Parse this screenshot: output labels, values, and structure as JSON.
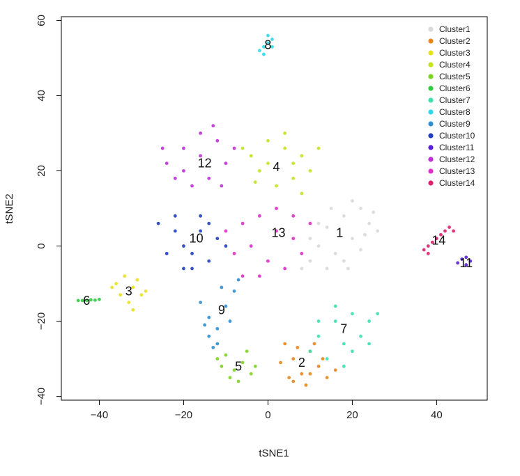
{
  "chart_data": {
    "type": "scatter",
    "title": "",
    "xlabel": "tSNE1",
    "ylabel": "tSNE2",
    "xlim": [
      -49,
      52
    ],
    "ylim": [
      -41,
      61
    ],
    "xticks": [
      -40,
      -20,
      0,
      20,
      40
    ],
    "yticks": [
      -40,
      -20,
      0,
      20,
      40,
      60
    ],
    "xtick_labels": [
      "−40",
      "−20",
      "0",
      "20",
      "40"
    ],
    "ytick_labels": [
      "−40",
      "−20",
      "0",
      "20",
      "40",
      "60"
    ],
    "legend_position": "top-right",
    "series": [
      {
        "name": "Cluster1",
        "color": "#d9d9d9",
        "label": "1",
        "label_pos": [
          17,
          3.5
        ],
        "points": [
          [
            14,
            5
          ],
          [
            18,
            8
          ],
          [
            22,
            10
          ],
          [
            20,
            2
          ],
          [
            16,
            -2
          ],
          [
            12,
            0
          ],
          [
            10,
            -4
          ],
          [
            14,
            -6
          ],
          [
            24,
            6
          ],
          [
            26,
            4
          ],
          [
            22,
            -1
          ],
          [
            18,
            -4
          ],
          [
            8,
            -6
          ],
          [
            12,
            6
          ],
          [
            20,
            12
          ],
          [
            15,
            10
          ],
          [
            25,
            9
          ],
          [
            10,
            2
          ],
          [
            19,
            -6
          ],
          [
            23,
            3
          ]
        ]
      },
      {
        "name": "Cluster2",
        "color": "#e8871e",
        "label": "2",
        "label_pos": [
          8,
          -31
        ],
        "points": [
          [
            4,
            -26
          ],
          [
            6,
            -30
          ],
          [
            8,
            -34
          ],
          [
            10,
            -28
          ],
          [
            12,
            -32
          ],
          [
            14,
            -35
          ],
          [
            9,
            -37
          ],
          [
            5,
            -35
          ],
          [
            3,
            -31
          ],
          [
            11,
            -26
          ],
          [
            13,
            -30
          ],
          [
            7,
            -27
          ],
          [
            16,
            -33
          ],
          [
            6,
            -36
          ],
          [
            10,
            -34
          ]
        ]
      },
      {
        "name": "Cluster3",
        "color": "#e8e21e",
        "label": "3",
        "label_pos": [
          -33,
          -12
        ],
        "points": [
          [
            -36,
            -10
          ],
          [
            -34,
            -8
          ],
          [
            -32,
            -11
          ],
          [
            -30,
            -13
          ],
          [
            -33,
            -15
          ],
          [
            -31,
            -9
          ],
          [
            -35,
            -13
          ],
          [
            -29,
            -12
          ],
          [
            -32,
            -17
          ],
          [
            -37,
            -11
          ]
        ]
      },
      {
        "name": "Cluster4",
        "color": "#c5e21e",
        "label": "4",
        "label_pos": [
          2,
          21
        ],
        "points": [
          [
            -4,
            24
          ],
          [
            0,
            28
          ],
          [
            4,
            26
          ],
          [
            8,
            24
          ],
          [
            10,
            20
          ],
          [
            6,
            18
          ],
          [
            2,
            16
          ],
          [
            -2,
            20
          ],
          [
            -6,
            26
          ],
          [
            4,
            30
          ],
          [
            12,
            26
          ],
          [
            8,
            14
          ],
          [
            0,
            22
          ],
          [
            6,
            22
          ],
          [
            -3,
            17
          ]
        ]
      },
      {
        "name": "Cluster5",
        "color": "#7ed321",
        "label": "5",
        "label_pos": [
          -7,
          -32
        ],
        "points": [
          [
            -10,
            -29
          ],
          [
            -8,
            -33
          ],
          [
            -6,
            -31
          ],
          [
            -4,
            -34
          ],
          [
            -9,
            -35
          ],
          [
            -11,
            -32
          ],
          [
            -5,
            -28
          ],
          [
            -3,
            -32
          ],
          [
            -7,
            -36
          ],
          [
            -12,
            -30
          ]
        ]
      },
      {
        "name": "Cluster6",
        "color": "#2ecc40",
        "label": "6",
        "label_pos": [
          -43,
          -14.5
        ],
        "points": [
          [
            -45,
            -14.5
          ],
          [
            -44,
            -14.5
          ],
          [
            -43,
            -14.5
          ],
          [
            -42,
            -14.3
          ],
          [
            -41,
            -14.4
          ],
          [
            -40,
            -14.2
          ]
        ]
      },
      {
        "name": "Cluster7",
        "color": "#3ee0b0",
        "label": "7",
        "label_pos": [
          18,
          -22
        ],
        "points": [
          [
            12,
            -24
          ],
          [
            16,
            -20
          ],
          [
            20,
            -18
          ],
          [
            24,
            -20
          ],
          [
            18,
            -26
          ],
          [
            14,
            -30
          ],
          [
            22,
            -24
          ],
          [
            26,
            -18
          ],
          [
            16,
            -16
          ],
          [
            20,
            -28
          ],
          [
            10,
            -28
          ],
          [
            24,
            -26
          ],
          [
            12,
            -20
          ],
          [
            18,
            -32
          ]
        ]
      },
      {
        "name": "Cluster8",
        "color": "#2ed8e8",
        "label": "8",
        "label_pos": [
          0,
          53.5
        ],
        "points": [
          [
            -2,
            52
          ],
          [
            -1,
            53
          ],
          [
            0,
            54
          ],
          [
            1,
            55
          ],
          [
            0,
            56
          ],
          [
            -1,
            51
          ],
          [
            1,
            53
          ]
        ]
      },
      {
        "name": "Cluster9",
        "color": "#2f8fd0",
        "label": "9",
        "label_pos": [
          -11,
          -17
        ],
        "points": [
          [
            -16,
            -15
          ],
          [
            -14,
            -19
          ],
          [
            -12,
            -22
          ],
          [
            -10,
            -16
          ],
          [
            -8,
            -12
          ],
          [
            -12,
            -26
          ],
          [
            -14,
            -24
          ],
          [
            -9,
            -20
          ],
          [
            -7,
            -9
          ],
          [
            -11,
            -11
          ],
          [
            -15,
            -21
          ],
          [
            -13,
            -27
          ]
        ]
      },
      {
        "name": "Cluster10",
        "color": "#1f3fc0",
        "label": "10",
        "label_pos": [
          -17,
          2
        ],
        "points": [
          [
            -26,
            6
          ],
          [
            -22,
            4
          ],
          [
            -20,
            0
          ],
          [
            -18,
            -2
          ],
          [
            -16,
            4
          ],
          [
            -14,
            6
          ],
          [
            -12,
            2
          ],
          [
            -24,
            -2
          ],
          [
            -20,
            -6
          ],
          [
            -14,
            -4
          ],
          [
            -10,
            0
          ],
          [
            -22,
            8
          ],
          [
            -16,
            8
          ],
          [
            -18,
            -6
          ]
        ]
      },
      {
        "name": "Cluster11",
        "color": "#5a1fd8",
        "label": "11",
        "label_pos": [
          47,
          -4.5
        ],
        "points": [
          [
            45,
            -4.5
          ],
          [
            46,
            -3.5
          ],
          [
            47,
            -3
          ],
          [
            48,
            -4
          ],
          [
            47,
            -5
          ]
        ]
      },
      {
        "name": "Cluster12",
        "color": "#c02ed8",
        "label": "12",
        "label_pos": [
          -15,
          22
        ],
        "points": [
          [
            -24,
            22
          ],
          [
            -20,
            26
          ],
          [
            -16,
            30
          ],
          [
            -12,
            28
          ],
          [
            -10,
            22
          ],
          [
            -14,
            18
          ],
          [
            -18,
            16
          ],
          [
            -22,
            18
          ],
          [
            -16,
            24
          ],
          [
            -20,
            20
          ],
          [
            -13,
            32
          ],
          [
            -8,
            26
          ],
          [
            -11,
            16
          ],
          [
            -25,
            26
          ]
        ]
      },
      {
        "name": "Cluster13",
        "color": "#e02ec8",
        "label": "13",
        "label_pos": [
          2.5,
          3.5
        ],
        "points": [
          [
            -6,
            6
          ],
          [
            -2,
            8
          ],
          [
            2,
            4
          ],
          [
            6,
            2
          ],
          [
            8,
            -2
          ],
          [
            4,
            -6
          ],
          [
            0,
            -4
          ],
          [
            -4,
            0
          ],
          [
            -8,
            -2
          ],
          [
            -6,
            -8
          ],
          [
            2,
            10
          ],
          [
            10,
            6
          ],
          [
            -2,
            -8
          ],
          [
            6,
            8
          ],
          [
            -10,
            4
          ]
        ]
      },
      {
        "name": "Cluster14",
        "color": "#e01e6e",
        "label": "14",
        "label_pos": [
          40.5,
          1.5
        ],
        "points": [
          [
            37,
            -1
          ],
          [
            38,
            0
          ],
          [
            39,
            1
          ],
          [
            40,
            2
          ],
          [
            41,
            3
          ],
          [
            42,
            4
          ],
          [
            43,
            5
          ],
          [
            44,
            4
          ],
          [
            38,
            -2
          ]
        ]
      }
    ]
  }
}
